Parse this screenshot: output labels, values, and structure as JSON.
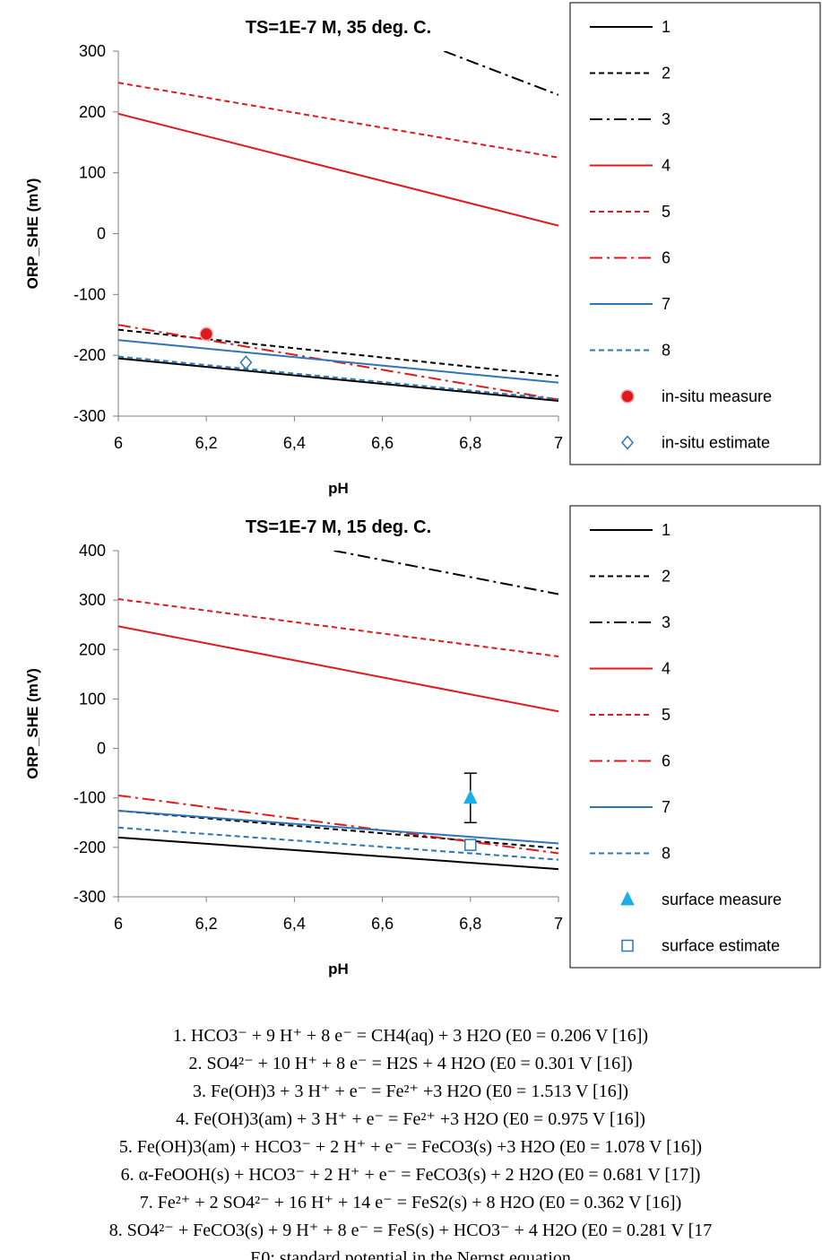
{
  "chart_data": [
    {
      "type": "line",
      "title": "TS=1E-7 M, 35 deg. C.",
      "xlabel": "pH",
      "ylabel": "ORP_SHE (mV)",
      "xlim": [
        6,
        7
      ],
      "ylim": [
        -300,
        300
      ],
      "xticks": [
        "6",
        "6,2",
        "6,4",
        "6,6",
        "6,8",
        "7"
      ],
      "yticks": [
        "-300",
        "-200",
        "-100",
        "0",
        "100",
        "200",
        "300"
      ],
      "grid": false,
      "legend_position": "right",
      "series": [
        {
          "name": "1",
          "color": "#000000",
          "dash": "solid",
          "x": [
            6,
            7
          ],
          "y": [
            -205,
            -275
          ]
        },
        {
          "name": "2",
          "color": "#000000",
          "dash": "dash",
          "x": [
            6,
            7
          ],
          "y": [
            -158,
            -234
          ]
        },
        {
          "name": "3",
          "color": "#000000",
          "dash": "dashdot",
          "x": [
            6.74,
            7
          ],
          "y": [
            300,
            228
          ]
        },
        {
          "name": "4",
          "color": "#e0191c",
          "dash": "solid",
          "x": [
            6,
            7
          ],
          "y": [
            197,
            13
          ]
        },
        {
          "name": "5",
          "color": "#e0191c",
          "dash": "dash",
          "x": [
            6,
            7
          ],
          "y": [
            248,
            125
          ]
        },
        {
          "name": "6",
          "color": "#e0191c",
          "dash": "dashdot",
          "x": [
            6,
            7
          ],
          "y": [
            -150,
            -273
          ]
        },
        {
          "name": "7",
          "color": "#2e75b6",
          "dash": "solid",
          "x": [
            6,
            7
          ],
          "y": [
            -175,
            -245
          ]
        },
        {
          "name": "8",
          "color": "#2e75b6",
          "dash": "dash",
          "x": [
            6,
            7
          ],
          "y": [
            -202,
            -272
          ]
        }
      ],
      "points": [
        {
          "name": "in-situ measure",
          "marker": "circle",
          "color": "#e0191c",
          "x": 6.2,
          "y": -165
        },
        {
          "name": "in-situ estimate",
          "marker": "diamond",
          "color": "#2e75b6",
          "x": 6.29,
          "y": -212
        }
      ]
    },
    {
      "type": "line",
      "title": "TS=1E-7 M, 15 deg. C.",
      "xlabel": "pH",
      "ylabel": "ORP_SHE (mV)",
      "xlim": [
        6,
        7
      ],
      "ylim": [
        -300,
        400
      ],
      "xticks": [
        "6",
        "6,2",
        "6,4",
        "6,6",
        "6,8",
        "7"
      ],
      "yticks": [
        "-300",
        "-200",
        "-100",
        "0",
        "100",
        "200",
        "300",
        "400"
      ],
      "grid": false,
      "legend_position": "right",
      "series": [
        {
          "name": "1",
          "color": "#000000",
          "dash": "solid",
          "x": [
            6,
            7
          ],
          "y": [
            -180,
            -244
          ]
        },
        {
          "name": "2",
          "color": "#000000",
          "dash": "dash",
          "x": [
            6,
            7
          ],
          "y": [
            -126,
            -202
          ]
        },
        {
          "name": "3",
          "color": "#000000",
          "dash": "dashdot",
          "x": [
            6.49,
            7
          ],
          "y": [
            400,
            312
          ]
        },
        {
          "name": "4",
          "color": "#e0191c",
          "dash": "solid",
          "x": [
            6,
            7
          ],
          "y": [
            247,
            75
          ]
        },
        {
          "name": "5",
          "color": "#e0191c",
          "dash": "dash",
          "x": [
            6,
            7
          ],
          "y": [
            302,
            186
          ]
        },
        {
          "name": "6",
          "color": "#e0191c",
          "dash": "dashdot",
          "x": [
            6,
            7
          ],
          "y": [
            -95,
            -212
          ]
        },
        {
          "name": "7",
          "color": "#2e75b6",
          "dash": "solid",
          "x": [
            6,
            7
          ],
          "y": [
            -126,
            -192
          ]
        },
        {
          "name": "8",
          "color": "#2e75b6",
          "dash": "dash",
          "x": [
            6,
            7
          ],
          "y": [
            -160,
            -225
          ]
        }
      ],
      "points": [
        {
          "name": "surface measure",
          "marker": "triangle",
          "color": "#1aafe6",
          "x": 6.8,
          "y": -100,
          "error": 50
        },
        {
          "name": "surface estimate",
          "marker": "square",
          "color": "#2e75b6",
          "x": 6.8,
          "y": -195
        }
      ]
    }
  ],
  "equations": [
    "1. HCO3⁻ + 9 H⁺ + 8 e⁻ = CH4(aq) + 3 H2O (E0 = 0.206 V [16])",
    "2. SO4²⁻ + 10 H⁺ + 8 e⁻ = H2S + 4 H2O (E0 = 0.301 V [16])",
    "3. Fe(OH)3 + 3 H⁺ + e⁻ = Fe²⁺ +3 H2O (E0 = 1.513 V [16])",
    "4. Fe(OH)3(am) + 3 H⁺ + e⁻ = Fe²⁺ +3 H2O (E0 = 0.975 V [16])",
    "5. Fe(OH)3(am) + HCO3⁻ + 2 H⁺ + e⁻ = FeCO3(s) +3 H2O (E0 = 1.078 V [16])",
    "6. α-FeOOH(s) + HCO3⁻ + 2 H⁺ + e⁻ = FeCO3(s) + 2 H2O (E0 = 0.681 V [17])",
    "7. Fe²⁺ + 2 SO4²⁻ + 16 H⁺ + 14 e⁻ = FeS2(s) + 8 H2O (E0 = 0.362 V [16])",
    "8. SO4²⁻ + FeCO3(s) + 9 H⁺ + 8 e⁻ = FeS(s) + HCO3⁻ + 4 H2O (E0 = 0.281 V [17",
    "E0: standard potential in the Nernst equation"
  ]
}
